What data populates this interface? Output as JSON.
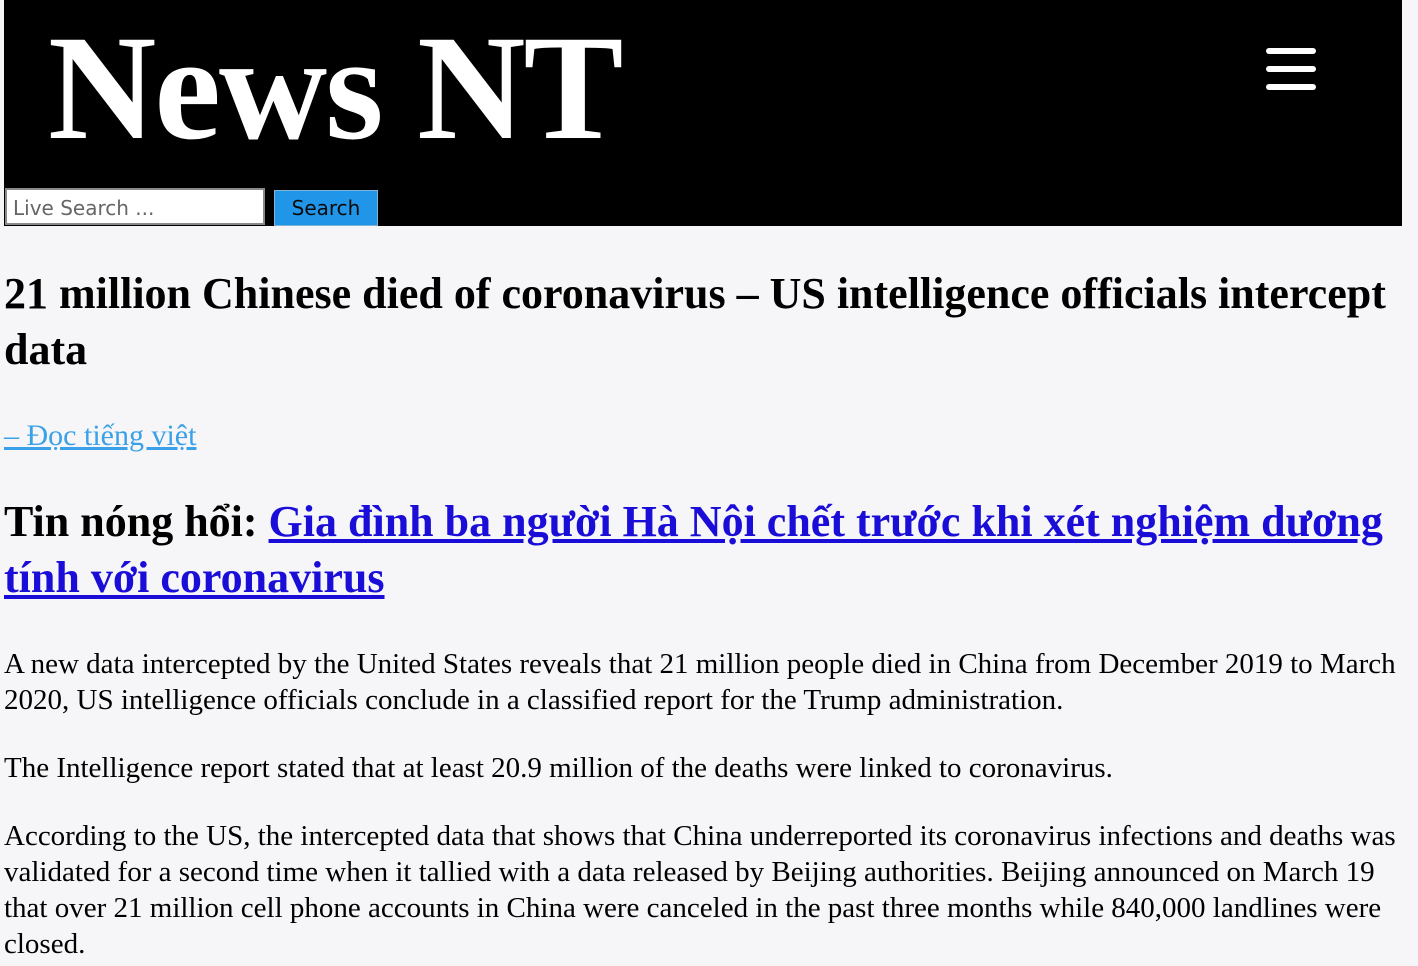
{
  "site": {
    "logo_text": "News NT",
    "menu_icon": "hamburger-menu-icon"
  },
  "search": {
    "placeholder": "Live Search ...",
    "button_label": "Search"
  },
  "article": {
    "headline": "21 million Chinese died of coronavirus – US intelligence officials intercept data",
    "read_vietnamese_link": "– Đọc tiếng việt",
    "hot_news_prefix": "Tin nóng hổi: ",
    "hot_news_link": "Gia đình ba người Hà Nội chết trước khi xét nghiệm dương tính với coronavirus",
    "paragraphs": [
      "A new data intercepted by the United States reveals that 21 million people died in China from December 2019 to March 2020, US intelligence officials conclude in a classified report for the Trump administration.",
      "The Intelligence report stated that at least 20.9 million of the deaths were linked to coronavirus.",
      "According to the US, the intercepted data that shows that China underreported its coronavirus infections and deaths was validated for a second time when it tallied with a data released by Beijing authorities. Beijing announced on March 19 that over 21 million cell phone accounts in China were canceled in the past three months while 840,000 landlines were closed."
    ]
  },
  "colors": {
    "header_background": "#000000",
    "search_button": "#2196e8",
    "read_link": "#3aa0e8",
    "hot_news_link": "#1a0dd8",
    "page_background": "#f6f6f8"
  }
}
